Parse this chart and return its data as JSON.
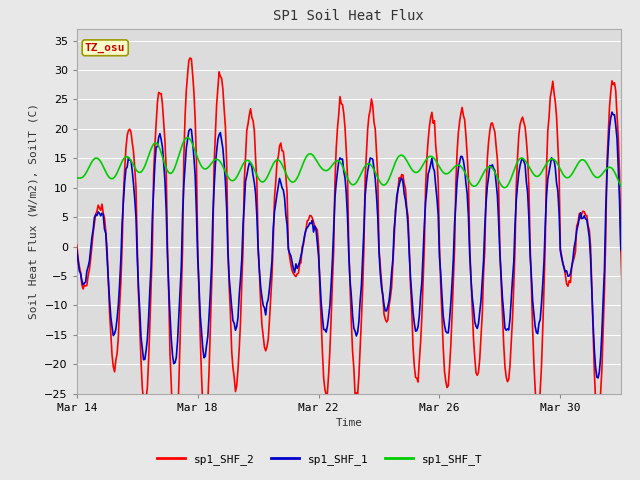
{
  "title": "SP1 Soil Heat Flux",
  "xlabel": "Time",
  "ylabel": "Soil Heat Flux (W/m2), SoilT (C)",
  "ylim": [
    -25,
    37
  ],
  "yticks": [
    -25,
    -20,
    -15,
    -10,
    -5,
    0,
    5,
    10,
    15,
    20,
    25,
    30,
    35
  ],
  "bg_color": "#e8e8e8",
  "plot_bg": "#dcdcdc",
  "line_colors": {
    "sp1_SHF_2": "#ff0000",
    "sp1_SHF_1": "#0000cc",
    "sp1_SHF_T": "#00cc00"
  },
  "line_widths": {
    "sp1_SHF_2": 1.2,
    "sp1_SHF_1": 1.2,
    "sp1_SHF_T": 1.2
  },
  "tz_label": "TZ_osu",
  "tz_box_color": "#ffffcc",
  "tz_text_color": "#cc0000",
  "tz_border_color": "#999900",
  "x_tick_labels": [
    "Mar 14",
    "Mar 18",
    "Mar 22",
    "Mar 26",
    "Mar 30"
  ],
  "x_tick_positions": [
    0,
    96,
    192,
    288,
    384
  ],
  "total_points": 480,
  "grid_color": "#ffffff",
  "font_family": "monospace",
  "figsize": [
    6.4,
    4.8
  ],
  "dpi": 100
}
